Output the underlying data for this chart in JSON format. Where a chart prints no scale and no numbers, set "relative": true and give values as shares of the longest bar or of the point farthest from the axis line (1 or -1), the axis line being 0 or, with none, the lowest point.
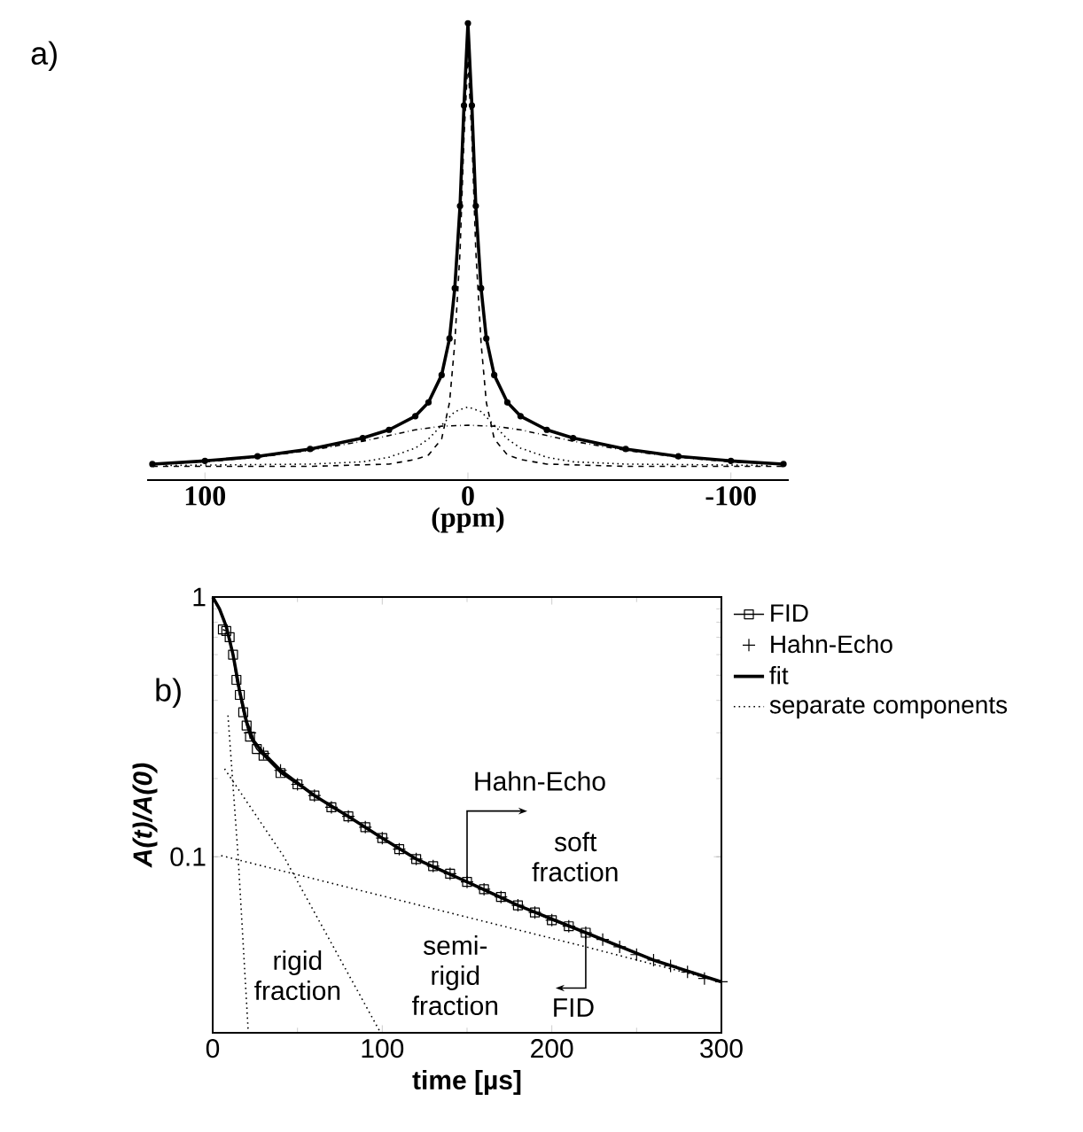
{
  "chart_data": [
    {
      "type": "line",
      "relative": true,
      "xlabel": "(ppm)",
      "xlim": [
        122,
        -122
      ],
      "xticks": [
        100,
        0,
        -100
      ],
      "annotations": [
        "a)"
      ],
      "series": [
        {
          "type": "scatter",
          "marker": "circle",
          "color": "#000000",
          "x": [
            120,
            100,
            80,
            60,
            40,
            30,
            20,
            15,
            10,
            7,
            5,
            3,
            1.5,
            0,
            -1.5,
            -3,
            -5,
            -7,
            -10,
            -15,
            -20,
            -30,
            -40,
            -60,
            -80,
            -100,
            -120
          ],
          "values": [
            0.035,
            0.042,
            0.052,
            0.068,
            0.092,
            0.11,
            0.14,
            0.17,
            0.23,
            0.31,
            0.42,
            0.6,
            0.82,
            1.0,
            0.82,
            0.6,
            0.42,
            0.31,
            0.23,
            0.17,
            0.14,
            0.11,
            0.092,
            0.068,
            0.052,
            0.042,
            0.035
          ]
        },
        {
          "type": "line",
          "line_style": "solid",
          "color": "#000000",
          "x": [
            120,
            100,
            80,
            60,
            40,
            30,
            20,
            15,
            10,
            7,
            5,
            3,
            1.5,
            0,
            -1.5,
            -3,
            -5,
            -7,
            -10,
            -15,
            -20,
            -30,
            -40,
            -60,
            -80,
            -100,
            -120
          ],
          "values": [
            0.035,
            0.042,
            0.052,
            0.068,
            0.092,
            0.11,
            0.14,
            0.17,
            0.23,
            0.31,
            0.42,
            0.6,
            0.82,
            1.0,
            0.82,
            0.6,
            0.42,
            0.31,
            0.23,
            0.17,
            0.14,
            0.11,
            0.092,
            0.068,
            0.052,
            0.042,
            0.035
          ]
        },
        {
          "type": "line",
          "line_style": "dashed",
          "color": "#000000",
          "x": [
            120,
            60,
            30,
            20,
            15,
            10,
            7,
            5,
            3,
            1.5,
            0,
            -1.5,
            -3,
            -5,
            -7,
            -10,
            -15,
            -20,
            -30,
            -60,
            -120
          ],
          "values": [
            0.03,
            0.03,
            0.035,
            0.045,
            0.055,
            0.09,
            0.17,
            0.3,
            0.5,
            0.75,
            0.92,
            0.75,
            0.5,
            0.3,
            0.17,
            0.09,
            0.055,
            0.045,
            0.035,
            0.03,
            0.03
          ]
        },
        {
          "type": "line",
          "line_style": "dotted",
          "color": "#000000",
          "x": [
            115,
            60,
            40,
            30,
            20,
            15,
            10,
            5,
            0,
            -5,
            -10,
            -15,
            -20,
            -30,
            -40,
            -60,
            -115
          ],
          "values": [
            0.032,
            0.035,
            0.04,
            0.05,
            0.07,
            0.09,
            0.12,
            0.15,
            0.16,
            0.15,
            0.12,
            0.09,
            0.07,
            0.05,
            0.04,
            0.035,
            0.032
          ]
        },
        {
          "type": "line",
          "line_style": "dashdot",
          "color": "#000000",
          "x": [
            120,
            100,
            80,
            60,
            40,
            20,
            10,
            0,
            -10,
            -20,
            -40,
            -60,
            -80,
            -100,
            -120
          ],
          "values": [
            0.035,
            0.04,
            0.05,
            0.065,
            0.085,
            0.11,
            0.118,
            0.12,
            0.118,
            0.11,
            0.085,
            0.065,
            0.05,
            0.04,
            0.035
          ]
        }
      ]
    },
    {
      "type": "line",
      "xlabel": "time [µs]",
      "ylabel": "A(t)/A(0)",
      "log": "y",
      "xlim": [
        0,
        300
      ],
      "ylim": [
        0.021,
        1
      ],
      "xticks": [
        0,
        100,
        200,
        300
      ],
      "yticks": [
        0.1,
        1
      ],
      "legend": "top right",
      "annotations": [
        "b)",
        {
          "text": "Hahn-Echo",
          "x": 150,
          "y": 0.08
        },
        "soft fraction",
        "rigid fraction",
        "semi-rigid fraction",
        {
          "text": "FID",
          "x": 220,
          "y": 0.05
        }
      ],
      "series": [
        {
          "name": "FID",
          "type": "line",
          "marker": "square",
          "line_style": "solid",
          "color": "#000000",
          "x": [
            6,
            8,
            10,
            12,
            14,
            16,
            18,
            20,
            22,
            26,
            30,
            40,
            50,
            60,
            70,
            80,
            90,
            100,
            110,
            120,
            130,
            140,
            150,
            160,
            170,
            180,
            190,
            200,
            210,
            220
          ],
          "values": [
            0.75,
            0.74,
            0.7,
            0.6,
            0.48,
            0.42,
            0.36,
            0.32,
            0.29,
            0.26,
            0.245,
            0.21,
            0.19,
            0.172,
            0.155,
            0.143,
            0.13,
            0.118,
            0.107,
            0.098,
            0.092,
            0.086,
            0.08,
            0.075,
            0.07,
            0.065,
            0.061,
            0.057,
            0.054,
            0.051
          ]
        },
        {
          "name": "Hahn-Echo",
          "type": "scatter",
          "marker": "cross",
          "color": "#000000",
          "x": [
            22,
            30,
            40,
            50,
            60,
            70,
            80,
            90,
            100,
            110,
            120,
            130,
            140,
            150,
            160,
            170,
            180,
            190,
            200,
            210,
            220,
            230,
            240,
            250,
            260,
            270,
            280,
            290,
            300
          ],
          "values": [
            0.3,
            0.25,
            0.215,
            0.19,
            0.172,
            0.155,
            0.143,
            0.13,
            0.118,
            0.107,
            0.098,
            0.092,
            0.086,
            0.08,
            0.075,
            0.07,
            0.065,
            0.061,
            0.057,
            0.054,
            0.051,
            0.048,
            0.045,
            0.042,
            0.04,
            0.038,
            0.036,
            0.034,
            0.033
          ]
        },
        {
          "name": "fit",
          "type": "line",
          "line_style": "solid",
          "color": "#000000",
          "x": [
            0,
            4,
            8,
            12,
            16,
            20,
            24,
            30,
            40,
            60,
            80,
            100,
            120,
            150,
            180,
            220,
            260,
            300
          ],
          "values": [
            1.0,
            0.9,
            0.77,
            0.6,
            0.43,
            0.33,
            0.28,
            0.25,
            0.215,
            0.172,
            0.143,
            0.118,
            0.098,
            0.08,
            0.065,
            0.051,
            0.04,
            0.033
          ]
        },
        {
          "name": "separate components",
          "type": "line",
          "line_style": "dotted",
          "color": "#000000",
          "x": [
            5,
            220,
            300
          ],
          "values": [
            0.101,
            0.045,
            0.033
          ]
        },
        {
          "type": "line",
          "line_style": "dotted",
          "color": "#000000",
          "x": [
            9,
            15,
            21
          ],
          "values": [
            0.35,
            0.1,
            0.021
          ]
        },
        {
          "type": "line",
          "line_style": "dotted",
          "color": "#000000",
          "x": [
            7,
            42,
            99
          ],
          "values": [
            0.218,
            0.1,
            0.021
          ]
        }
      ]
    }
  ]
}
